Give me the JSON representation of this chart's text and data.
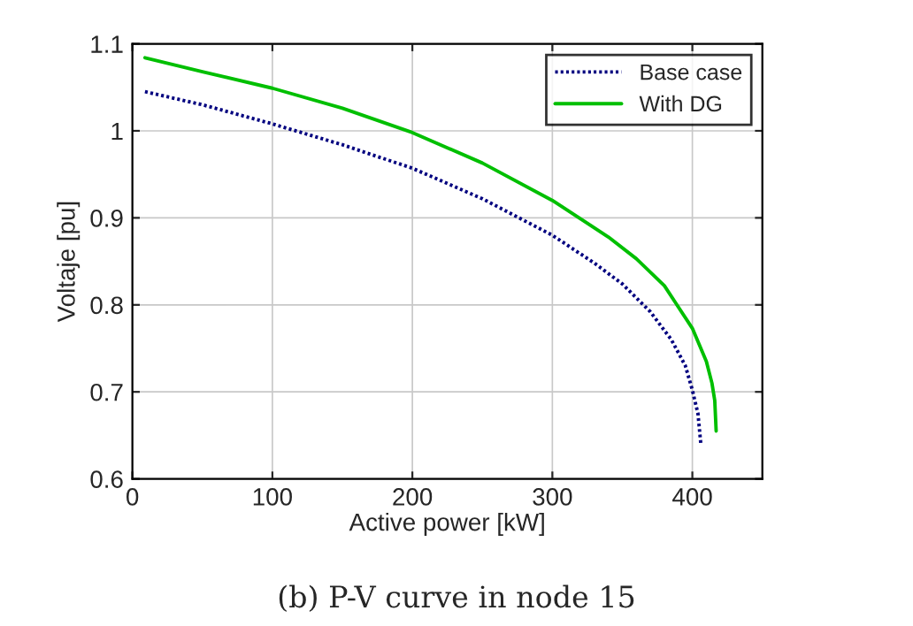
{
  "chart_data": {
    "type": "line",
    "title": "(b) P-V curve in node 15",
    "xlabel": "Active power [kW]",
    "ylabel": "Voltaje [pu]",
    "xlim": [
      0,
      450
    ],
    "xticks": [
      0,
      100,
      200,
      300,
      400
    ],
    "ylim": [
      0.6,
      1.1
    ],
    "yticks": [
      0.6,
      0.7,
      0.8,
      0.9,
      1,
      1.1
    ],
    "grid": true,
    "legend": "top right",
    "series": [
      {
        "name": "Base case",
        "color": "#00007f",
        "line_style": "dotted",
        "x": [
          9,
          50,
          100,
          150,
          200,
          250,
          300,
          330,
          350,
          370,
          385,
          395,
          400,
          404,
          406
        ],
        "values": [
          1.045,
          1.03,
          1.008,
          0.984,
          0.957,
          0.922,
          0.88,
          0.848,
          0.824,
          0.792,
          0.76,
          0.73,
          0.702,
          0.675,
          0.641
        ]
      },
      {
        "name": "With DG",
        "color": "#00bf00",
        "line_style": "solid",
        "x": [
          9,
          50,
          100,
          150,
          200,
          250,
          300,
          340,
          360,
          380,
          400,
          410,
          414,
          416,
          417
        ],
        "values": [
          1.084,
          1.068,
          1.049,
          1.026,
          0.998,
          0.963,
          0.92,
          0.878,
          0.853,
          0.822,
          0.773,
          0.735,
          0.71,
          0.69,
          0.655
        ]
      }
    ]
  }
}
